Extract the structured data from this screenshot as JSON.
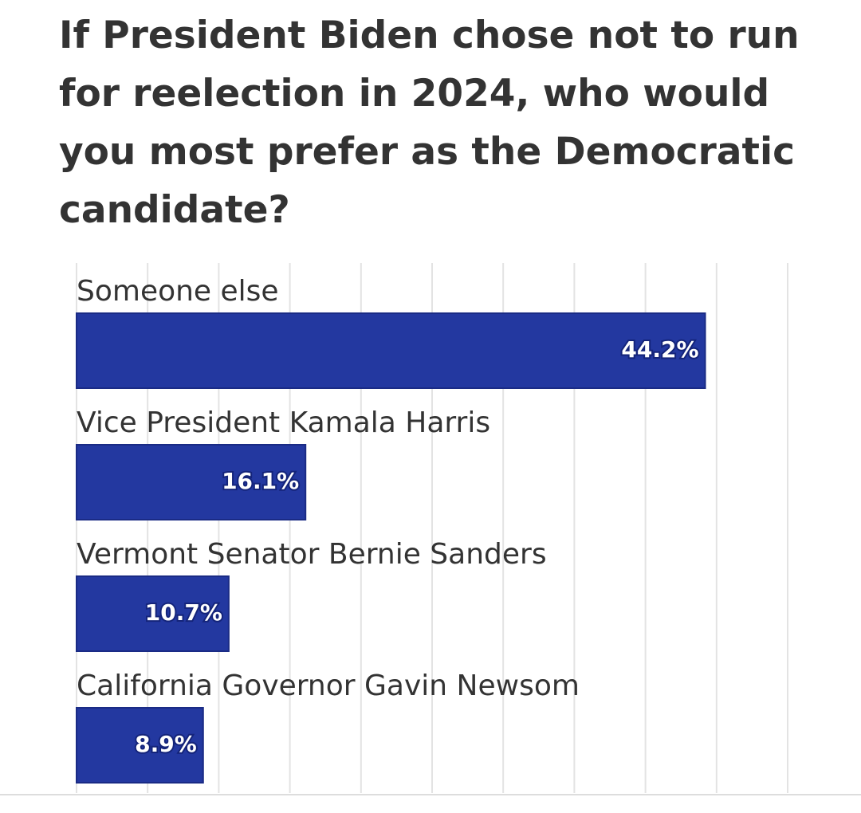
{
  "chart_data": {
    "type": "bar",
    "orientation": "horizontal",
    "title": "If President Biden chose not to run for reelection in 2024, who would you most prefer as the Democratic candidate?",
    "categories": [
      "Someone else",
      "Vice President Kamala Harris",
      "Vermont Senator Bernie Sanders",
      "California Governor Gavin Newsom"
    ],
    "values": [
      44.2,
      16.1,
      10.7,
      8.9
    ],
    "value_labels": [
      "44.2%",
      "16.1%",
      "10.7%",
      "8.9%"
    ],
    "color": "#2338a0",
    "xlim": [
      0,
      50
    ],
    "xticks": [
      0,
      5,
      10,
      15,
      20,
      25,
      30,
      35,
      40,
      45,
      50
    ],
    "grid": true
  }
}
